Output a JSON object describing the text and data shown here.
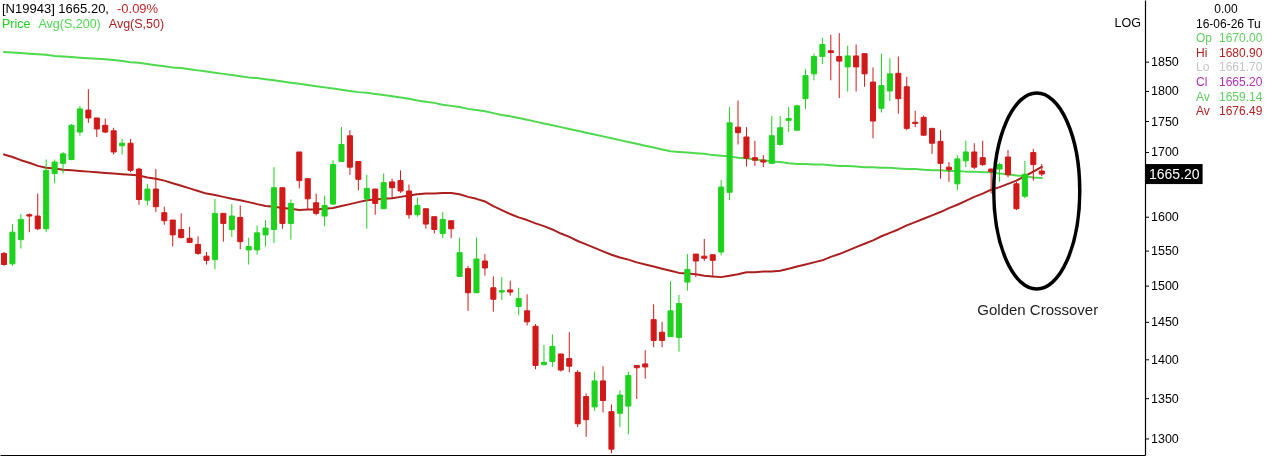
{
  "chart_data": {
    "type": "candlestick",
    "title": "[N19943] 1665.20,",
    "subtitle": "-0.09%",
    "ylabel": "LOG",
    "categories": [
      null,
      null,
      null,
      null,
      null,
      null,
      null,
      null,
      null,
      null,
      null,
      null,
      null,
      null,
      null,
      null,
      null,
      null,
      null,
      null,
      null,
      null,
      null,
      null,
      null,
      null,
      null,
      null,
      null,
      null,
      null,
      null,
      null,
      null,
      null,
      null,
      null,
      null,
      null,
      null,
      null,
      null,
      null,
      null,
      null,
      null,
      null,
      null,
      null,
      null,
      null,
      null,
      null,
      null,
      null,
      null,
      null,
      null,
      null,
      null,
      null,
      null,
      null,
      null,
      null,
      null,
      null,
      null,
      null,
      null,
      null,
      null,
      null,
      null,
      null,
      null,
      null,
      null,
      null,
      null,
      null,
      null,
      null,
      null,
      null,
      null,
      null,
      null,
      null,
      null,
      null,
      null,
      null,
      null,
      null,
      null,
      null,
      null,
      null,
      null,
      null,
      null,
      null,
      null,
      null,
      null,
      null,
      null,
      null,
      null,
      null,
      null,
      null,
      null,
      null,
      null,
      null,
      null,
      null,
      null,
      null,
      null,
      null,
      null
    ],
    "series": [
      {
        "name": "Price",
        "color": "#1ed21e",
        "colors": [
          "#d11a1a",
          "#1ed21e",
          "#1ed21e",
          "#d11a1a",
          "#d11a1a",
          "#1ed21e",
          "#1ed21e",
          "#1ed21e",
          "#1ed21e",
          "#1ed21e",
          "#d11a1a",
          "#d11a1a",
          "#d11a1a",
          "#d11a1a",
          "#1ed21e",
          "#d11a1a",
          "#d11a1a",
          "#1ed21e",
          "#d11a1a",
          "#d11a1a",
          "#d11a1a",
          "#d11a1a",
          "#d11a1a",
          "#d11a1a",
          "#d11a1a",
          "#1ed21e",
          "#d11a1a",
          "#1ed21e",
          "#d11a1a",
          "#1ed21e",
          "#1ed21e",
          "#1ed21e",
          "#1ed21e",
          "#d11a1a",
          "#1ed21e",
          "#d11a1a",
          "#d11a1a",
          "#d11a1a",
          "#1ed21e",
          "#1ed21e",
          "#1ed21e",
          "#d11a1a",
          "#d11a1a",
          "#1ed21e",
          "#d11a1a",
          "#1ed21e",
          "#d11a1a",
          "#d11a1a",
          "#d11a1a",
          "#1ed21e",
          "#d11a1a",
          "#d11a1a",
          "#1ed21e",
          "#d11a1a",
          "#1ed21e",
          "#d11a1a",
          "#1ed21e",
          "#d11a1a",
          "#d11a1a",
          "#1ed21e",
          "#d11a1a",
          "#1ed21e",
          "#d11a1a",
          "#d11a1a",
          "#1ed21e",
          "#1ed21e",
          "#d11a1a",
          "#d11a1a",
          "#d11a1a",
          "#d11a1a",
          "#1ed21e",
          "#d11a1a",
          "#d11a1a",
          "#1ed21e",
          "#1ed21e",
          "#d11a1a",
          "#d11a1a",
          "#d11a1a",
          "#d11a1a",
          "#1ed21e",
          "#1ed21e",
          "#1ed21e",
          "#d11a1a",
          "#d11a1a",
          "#d11a1a",
          "#1ed21e",
          "#1ed21e",
          "#d11a1a",
          "#d11a1a",
          "#d11a1a",
          "#d11a1a",
          "#1ed21e",
          "#1ed21e",
          "#1ed21e",
          "#1ed21e",
          "#1ed21e",
          "#1ed21e",
          "#1ed21e",
          "#d11a1a",
          "#d11a1a",
          "#1ed21e",
          "#d11a1a",
          "#d11a1a",
          "#d11a1a",
          "#1ed21e",
          "#1ed21e",
          "#d11a1a",
          "#d11a1a",
          "#d11a1a",
          "#d11a1a",
          "#d11a1a",
          "#d11a1a",
          "#d11a1a",
          "#1ed21e",
          "#1ed21e",
          "#d11a1a",
          "#d11a1a",
          "#d11a1a",
          "#1ed21e",
          "#d11a1a",
          "#d11a1a",
          "#1ed21e",
          "#d11a1a",
          "#d11a1a"
        ],
        "ohlc": [
          [
            1546,
            1548,
            1528,
            1530
          ],
          [
            1531,
            1589,
            1528,
            1577
          ],
          [
            1566,
            1604,
            1553,
            1596
          ],
          [
            1603,
            1605,
            1577,
            1601
          ],
          [
            1601,
            1635,
            1580,
            1582
          ],
          [
            1582,
            1688,
            1577,
            1671
          ],
          [
            1666,
            1688,
            1651,
            1684
          ],
          [
            1682,
            1700,
            1666,
            1697
          ],
          [
            1688,
            1745,
            1687,
            1743
          ],
          [
            1732,
            1775,
            1726,
            1770
          ],
          [
            1768,
            1803,
            1747,
            1755
          ],
          [
            1755,
            1755,
            1724,
            1737
          ],
          [
            1743,
            1754,
            1730,
            1732
          ],
          [
            1734,
            1739,
            1696,
            1700
          ],
          [
            1710,
            1721,
            1696,
            1714
          ],
          [
            1714,
            1721,
            1668,
            1671
          ],
          [
            1673,
            1675,
            1618,
            1626
          ],
          [
            1625,
            1650,
            1617,
            1642
          ],
          [
            1642,
            1673,
            1607,
            1615
          ],
          [
            1606,
            1615,
            1588,
            1594
          ],
          [
            1595,
            1595,
            1556,
            1573
          ],
          [
            1581,
            1605,
            1568,
            1569
          ],
          [
            1568,
            1585,
            1561,
            1562
          ],
          [
            1559,
            1571,
            1544,
            1546
          ],
          [
            1542,
            1548,
            1530,
            1536
          ],
          [
            1537,
            1627,
            1523,
            1605
          ],
          [
            1605,
            1605,
            1563,
            1590
          ],
          [
            1581,
            1619,
            1570,
            1601
          ],
          [
            1599,
            1617,
            1552,
            1563
          ],
          [
            1551,
            1569,
            1530,
            1556
          ],
          [
            1551,
            1587,
            1544,
            1576
          ],
          [
            1573,
            1595,
            1556,
            1583
          ],
          [
            1581,
            1676,
            1561,
            1644
          ],
          [
            1644,
            1645,
            1582,
            1590
          ],
          [
            1590,
            1626,
            1566,
            1620
          ],
          [
            1700,
            1700,
            1643,
            1655
          ],
          [
            1658,
            1658,
            1611,
            1627
          ],
          [
            1621,
            1635,
            1602,
            1605
          ],
          [
            1601,
            1632,
            1586,
            1617
          ],
          [
            1619,
            1687,
            1618,
            1680
          ],
          [
            1685,
            1740,
            1684,
            1712
          ],
          [
            1726,
            1735,
            1664,
            1676
          ],
          [
            1685,
            1685,
            1640,
            1657
          ],
          [
            1627,
            1664,
            1582,
            1643
          ],
          [
            1642,
            1642,
            1603,
            1620
          ],
          [
            1612,
            1666,
            1612,
            1652
          ],
          [
            1653,
            1658,
            1628,
            1644
          ],
          [
            1655,
            1671,
            1636,
            1639
          ],
          [
            1639,
            1649,
            1597,
            1603
          ],
          [
            1603,
            1629,
            1600,
            1617
          ],
          [
            1612,
            1612,
            1582,
            1589
          ],
          [
            1600,
            1600,
            1575,
            1581
          ],
          [
            1575,
            1607,
            1568,
            1596
          ],
          [
            1594,
            1594,
            1568,
            1582
          ],
          [
            1513,
            1569,
            1513,
            1547
          ],
          [
            1524,
            1528,
            1465,
            1490
          ],
          [
            1490,
            1569,
            1490,
            1538
          ],
          [
            1535,
            1545,
            1514,
            1525
          ],
          [
            1497,
            1513,
            1464,
            1481
          ],
          [
            1491,
            1512,
            1480,
            1493
          ],
          [
            1494,
            1507,
            1486,
            1491
          ],
          [
            1471,
            1497,
            1459,
            1482
          ],
          [
            1465,
            1488,
            1445,
            1450
          ],
          [
            1444,
            1447,
            1387,
            1392
          ],
          [
            1393,
            1419,
            1392,
            1396
          ],
          [
            1397,
            1433,
            1390,
            1417
          ],
          [
            1407,
            1407,
            1384,
            1386
          ],
          [
            1401,
            1436,
            1383,
            1391
          ],
          [
            1383,
            1386,
            1314,
            1318
          ],
          [
            1352,
            1356,
            1302,
            1323
          ],
          [
            1339,
            1384,
            1334,
            1372
          ],
          [
            1372,
            1391,
            1332,
            1347
          ],
          [
            1333,
            1342,
            1282,
            1287
          ],
          [
            1331,
            1360,
            1314,
            1354
          ],
          [
            1340,
            1384,
            1305,
            1379
          ],
          [
            1392,
            1392,
            1349,
            1389
          ],
          [
            1394,
            1412,
            1375,
            1390
          ],
          [
            1453,
            1474,
            1416,
            1425
          ],
          [
            1436,
            1450,
            1416,
            1425
          ],
          [
            1430,
            1506,
            1430,
            1465
          ],
          [
            1429,
            1487,
            1410,
            1475
          ],
          [
            1505,
            1545,
            1493,
            1523
          ],
          [
            1545,
            1545,
            1512,
            1535
          ],
          [
            1542,
            1567,
            1535,
            1539
          ],
          [
            1544,
            1544,
            1512,
            1536
          ],
          [
            1548,
            1656,
            1543,
            1645
          ],
          [
            1637,
            1773,
            1625,
            1747
          ],
          [
            1740,
            1784,
            1712,
            1731
          ],
          [
            1724,
            1740,
            1677,
            1690
          ],
          [
            1691,
            1718,
            1678,
            1687
          ],
          [
            1687,
            1695,
            1676,
            1684
          ],
          [
            1682,
            1758,
            1681,
            1726
          ],
          [
            1712,
            1758,
            1710,
            1739
          ],
          [
            1751,
            1773,
            1732,
            1754
          ],
          [
            1735,
            1777,
            1734,
            1775
          ],
          [
            1787,
            1837,
            1770,
            1826
          ],
          [
            1829,
            1864,
            1818,
            1859
          ],
          [
            1859,
            1892,
            1846,
            1880
          ],
          [
            1869,
            1897,
            1818,
            1866
          ],
          [
            1859,
            1900,
            1788,
            1851
          ],
          [
            1841,
            1878,
            1799,
            1860
          ],
          [
            1860,
            1880,
            1799,
            1841
          ],
          [
            1864,
            1864,
            1807,
            1829
          ],
          [
            1815,
            1840,
            1722,
            1750
          ],
          [
            1771,
            1864,
            1764,
            1809
          ],
          [
            1800,
            1856,
            1783,
            1829
          ],
          [
            1830,
            1859,
            1762,
            1787
          ],
          [
            1807,
            1824,
            1735,
            1738
          ],
          [
            1748,
            1767,
            1740,
            1746
          ],
          [
            1756,
            1759,
            1726,
            1727
          ],
          [
            1738,
            1738,
            1697,
            1714
          ],
          [
            1717,
            1735,
            1658,
            1682
          ],
          [
            1676,
            1684,
            1653,
            1672
          ],
          [
            1650,
            1695,
            1640,
            1689
          ],
          [
            1686,
            1718,
            1676,
            1700
          ],
          [
            1700,
            1714,
            1673,
            1676
          ],
          [
            1691,
            1718,
            1678,
            1680
          ],
          [
            1673,
            1674,
            1635,
            1669
          ],
          [
            1673,
            1683,
            1653,
            1680
          ],
          [
            1692,
            1703,
            1660,
            1664
          ],
          [
            1650,
            1653,
            1610,
            1612
          ],
          [
            1631,
            1686,
            1628,
            1665
          ],
          [
            1699,
            1705,
            1655,
            1680
          ],
          [
            1670,
            1680.9,
            1661.7,
            1665.2
          ]
        ]
      },
      {
        "name": "Avg(S,200)",
        "type": "line",
        "color": "#4fd94f",
        "values": [
          1867,
          1866,
          1865,
          1864,
          1863,
          1862,
          1860,
          1859,
          1858,
          1857,
          1856,
          1855,
          1854,
          1853,
          1851,
          1849,
          1848,
          1846,
          1844,
          1842,
          1840,
          1839,
          1837,
          1835,
          1833,
          1831,
          1829,
          1827,
          1825,
          1823,
          1822,
          1820,
          1818,
          1816,
          1814,
          1812,
          1810,
          1808,
          1806,
          1804,
          1802,
          1800,
          1798,
          1797,
          1795,
          1793,
          1791,
          1789,
          1787,
          1784,
          1782,
          1780,
          1777,
          1775,
          1773,
          1770,
          1768,
          1766,
          1763,
          1760,
          1758,
          1755,
          1752,
          1749,
          1746,
          1743,
          1740,
          1737,
          1734,
          1731,
          1728,
          1725,
          1722,
          1719,
          1716,
          1713,
          1710,
          1707,
          1704,
          1701,
          1700,
          1699,
          1698,
          1697,
          1695,
          1694,
          1693,
          1691,
          1690,
          1688,
          1687,
          1685,
          1684,
          1682,
          1681,
          1681,
          1680,
          1680,
          1679,
          1678,
          1678,
          1677,
          1676,
          1676,
          1675,
          1675,
          1674,
          1673,
          1673,
          1672,
          1671,
          1671,
          1670,
          1670,
          1669,
          1669,
          1668,
          1668,
          1666,
          1665,
          1663,
          1662,
          1660,
          1659.14
        ]
      },
      {
        "name": "Avg(S,50)",
        "type": "line",
        "color": "#ab1f1f",
        "values": [
          1696,
          1692,
          1687,
          1683,
          1678,
          1675,
          1674,
          1672,
          1671,
          1670,
          1669,
          1668,
          1667,
          1666,
          1665,
          1664,
          1663,
          1660,
          1658,
          1655,
          1651,
          1647,
          1643,
          1639,
          1635,
          1633,
          1630,
          1627,
          1625,
          1622,
          1619,
          1616,
          1615,
          1613,
          1612,
          1610,
          1611,
          1611,
          1612,
          1613,
          1616,
          1619,
          1622,
          1625,
          1626,
          1627,
          1628,
          1630,
          1632,
          1634,
          1635,
          1635,
          1636,
          1636,
          1634,
          1630,
          1627,
          1623,
          1616,
          1610,
          1604,
          1599,
          1595,
          1590,
          1586,
          1581,
          1575,
          1570,
          1564,
          1559,
          1554,
          1549,
          1544,
          1540,
          1537,
          1533,
          1530,
          1527,
          1524,
          1521,
          1518,
          1517,
          1516,
          1514,
          1513,
          1512,
          1514,
          1516,
          1519,
          1519,
          1520,
          1520,
          1521,
          1524,
          1527,
          1530,
          1533,
          1536,
          1541,
          1545,
          1550,
          1555,
          1560,
          1565,
          1571,
          1576,
          1581,
          1587,
          1592,
          1597,
          1602,
          1607,
          1613,
          1618,
          1624,
          1630,
          1635,
          1641,
          1645,
          1650,
          1655,
          1662,
          1669,
          1676.49
        ]
      }
    ],
    "ylim": [
      1280,
      1960
    ],
    "yticks": [
      1300,
      1350,
      1400,
      1450,
      1500,
      1550,
      1600,
      1700,
      1750,
      1800,
      1850
    ],
    "log": true,
    "tick_labels": "y",
    "annotations": [
      "1665.20",
      "Golden Crossover",
      "0.00",
      "16-06-26 Tu",
      "Op 1670.00",
      "Hi 1680.90",
      "Lo 1661.70",
      "Cl 1665.20",
      "Av 1659.14",
      "Av 1676.49"
    ]
  }
}
